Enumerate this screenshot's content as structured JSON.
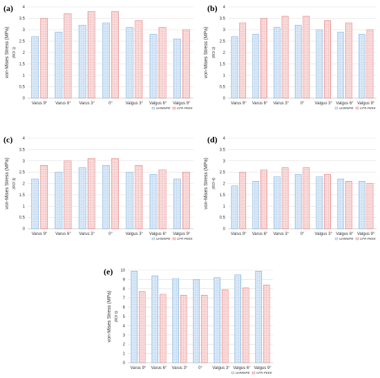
{
  "colors": {
    "uhmwpe": "#6fa8dc",
    "cfr_peek": "#e06666",
    "uhmwpe_fill": "#e8f1fa",
    "cfr_peek_fill": "#fbeaea"
  },
  "chart_data": [
    {
      "type": "bar",
      "panel_label": "(a)",
      "ylabel": "von-Mises Stress (MPa)",
      "roi_label": "(ROI 1)",
      "categories": [
        "Varus 9°",
        "Varus 6°",
        "Varus 3°",
        "0°",
        "Valgus 3°",
        "Valgus 6°",
        "Valgus 9°"
      ],
      "series": [
        {
          "name": "UHMWPE",
          "values": [
            2.7,
            2.9,
            3.2,
            3.3,
            3.1,
            2.8,
            2.6
          ]
        },
        {
          "name": "CFR-PEEK",
          "values": [
            3.5,
            3.7,
            3.8,
            3.8,
            3.4,
            3.1,
            3.0
          ]
        }
      ],
      "ylim": [
        0,
        4
      ],
      "yticks": [
        "0",
        "0.5",
        "1",
        "1.5",
        "2",
        "2.5",
        "3",
        "3.5",
        "4"
      ],
      "grid": true,
      "legend": "bottom-right"
    },
    {
      "type": "bar",
      "panel_label": "(b)",
      "ylabel": "von-Mises Stress (MPa)",
      "roi_label": "(ROI 2)",
      "categories": [
        "Varus 9°",
        "Varus 6°",
        "Varus 3°",
        "0°",
        "Valgus 3°",
        "Valgus 6°",
        "Valgus 9°"
      ],
      "series": [
        {
          "name": "UHMWPE",
          "values": [
            2.7,
            2.8,
            3.1,
            3.2,
            3.0,
            2.9,
            2.8
          ]
        },
        {
          "name": "CFR-PEEK",
          "values": [
            3.3,
            3.5,
            3.6,
            3.6,
            3.4,
            3.3,
            3.0
          ]
        }
      ],
      "ylim": [
        0,
        4
      ],
      "yticks": [
        "0",
        "0.5",
        "1",
        "1.5",
        "2",
        "2.5",
        "3",
        "3.5",
        "4"
      ],
      "grid": true,
      "legend": "bottom-right"
    },
    {
      "type": "bar",
      "panel_label": "(c)",
      "ylabel": "von-Mises Stress (MPa)",
      "roi_label": "(ROI 3)",
      "categories": [
        "Varus 9°",
        "Varus 6°",
        "Varus 3°",
        "0°",
        "Valgus 3°",
        "Valgus 6°",
        "Valgus 9°"
      ],
      "series": [
        {
          "name": "UHMWPE",
          "values": [
            2.2,
            2.5,
            2.7,
            2.8,
            2.5,
            2.4,
            2.2
          ]
        },
        {
          "name": "CFR-PEEK",
          "values": [
            2.8,
            3.0,
            3.1,
            3.1,
            2.8,
            2.6,
            2.5
          ]
        }
      ],
      "ylim": [
        0,
        4
      ],
      "yticks": [
        "0",
        "0.5",
        "1",
        "1.5",
        "2",
        "2.5",
        "3",
        "3.5",
        "4"
      ],
      "grid": true,
      "legend": "bottom-right"
    },
    {
      "type": "bar",
      "panel_label": "(d)",
      "ylabel": "von-Mises Stress (MPa)",
      "roi_label": "(ROI 4)",
      "categories": [
        "Varus 9°",
        "Varus 6°",
        "Varus 3°",
        "0°",
        "Valgus 3°",
        "Valgus 6°",
        "Valgus 9°"
      ],
      "series": [
        {
          "name": "UHMWPE",
          "values": [
            1.9,
            2.1,
            2.3,
            2.4,
            2.3,
            2.2,
            2.1
          ]
        },
        {
          "name": "CFR-PEEK",
          "values": [
            2.5,
            2.6,
            2.7,
            2.7,
            2.4,
            2.1,
            2.0
          ]
        }
      ],
      "ylim": [
        0,
        4
      ],
      "yticks": [
        "0",
        "0.5",
        "1",
        "1.5",
        "2",
        "2.5",
        "3",
        "3.5",
        "4"
      ],
      "grid": true,
      "legend": "bottom-right"
    },
    {
      "type": "bar",
      "panel_label": "(e)",
      "ylabel": "von-Mises Stress (MPa)",
      "roi_label": "(ROI 5)",
      "categories": [
        "Varus 9°",
        "Varus 6°",
        "Varus 3°",
        "0°",
        "Valgus 3°",
        "Valgus 6°",
        "Valgus 9°"
      ],
      "series": [
        {
          "name": "UHMWPE",
          "values": [
            9.9,
            9.4,
            9.1,
            9.0,
            9.2,
            9.5,
            9.9
          ]
        },
        {
          "name": "CFR-PEEK",
          "values": [
            7.7,
            7.4,
            7.3,
            7.3,
            7.9,
            8.1,
            8.4
          ]
        }
      ],
      "ylim": [
        0,
        10
      ],
      "yticks": [
        "0",
        "1",
        "2",
        "3",
        "4",
        "5",
        "6",
        "7",
        "8",
        "9",
        "10"
      ],
      "grid": true,
      "legend": "bottom-right"
    }
  ]
}
